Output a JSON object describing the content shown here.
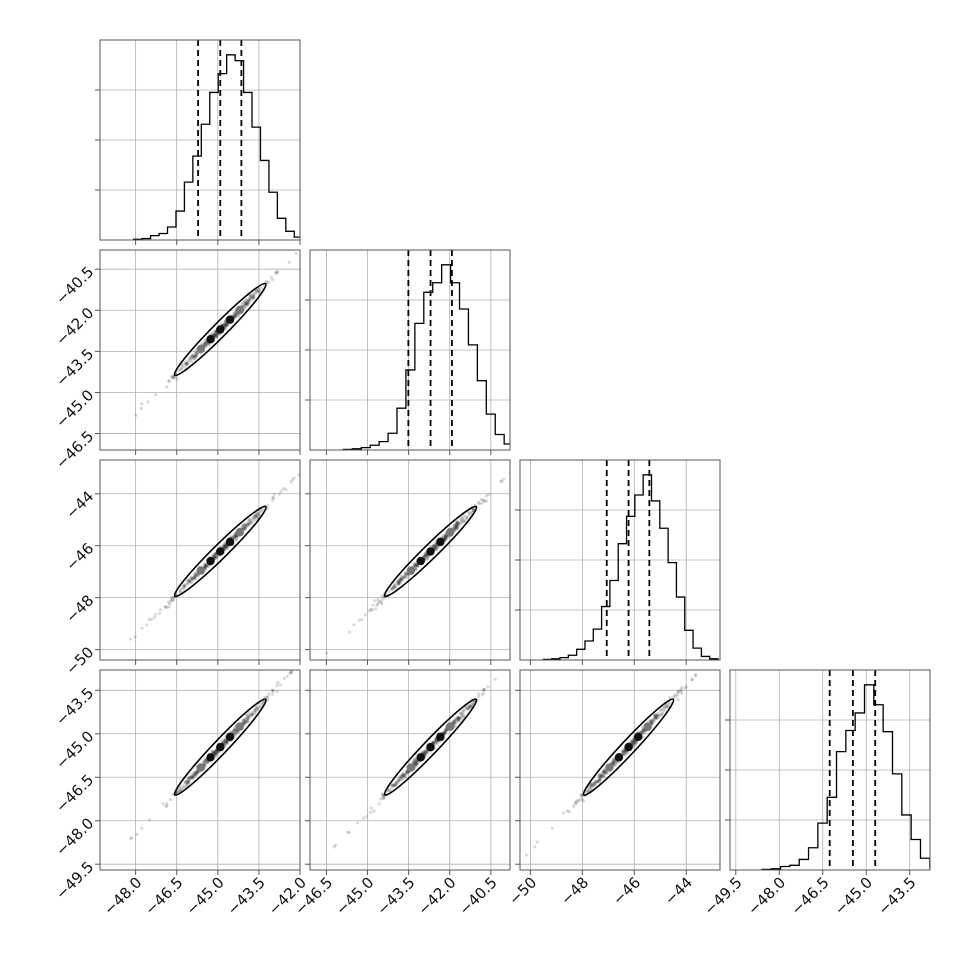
{
  "chart_data": {
    "type": "corner",
    "n_params": 4,
    "colors": {
      "hist_line": "#000000",
      "quantile_line": "#000000",
      "grid": "#b0b0b0",
      "frame": "#555555",
      "points": "#333333",
      "contour": "#000000"
    },
    "grid": true,
    "params": [
      {
        "range": [
          -49.3,
          -42.0
        ],
        "ticks": [
          -48.0,
          -46.5,
          -45.0,
          -43.5,
          -42.0
        ],
        "tick_labels": [
          "−48.0",
          "−46.5",
          "−45.0",
          "−43.5",
          "−42.0"
        ],
        "quantiles": [
          -45.72,
          -44.91,
          -44.14
        ]
      },
      {
        "range": [
          -47.1,
          -39.8
        ],
        "ticks": [
          -46.5,
          -45.0,
          -43.5,
          -42.0,
          -40.5
        ],
        "tick_labels": [
          "−46.5",
          "−45.0",
          "−43.5",
          "−42.0",
          "−40.5"
        ],
        "quantiles": [
          -43.51,
          -42.7,
          -41.92
        ]
      },
      {
        "range": [
          -50.4,
          -42.7
        ],
        "ticks": [
          -50,
          -48,
          -46,
          -44
        ],
        "tick_labels": [
          "−50",
          "−48",
          "−46",
          "−44"
        ],
        "quantiles": [
          -47.06,
          -46.22,
          -45.42
        ]
      },
      {
        "range": [
          -49.7,
          -42.8
        ],
        "ticks": [
          -49.5,
          -48.0,
          -46.5,
          -45.0,
          -43.5
        ],
        "tick_labels": [
          "−49.5",
          "−48.0",
          "−46.5",
          "−45.0",
          "−43.5"
        ],
        "quantiles": [
          -46.26,
          -45.46,
          -44.69
        ]
      }
    ],
    "histograms": [
      {
        "counts": [
          0.5,
          1,
          3,
          4.5,
          9,
          20,
          40,
          58,
          80,
          102,
          115,
          128,
          124,
          102,
          78,
          55,
          33,
          15,
          6,
          2,
          0.8
        ]
      },
      {
        "counts": [
          0.5,
          1,
          2,
          4,
          7,
          14,
          35,
          67,
          106,
          132,
          140,
          155,
          140,
          118,
          88,
          58,
          30,
          13,
          5,
          1.5
        ]
      },
      {
        "counts": [
          0.5,
          1,
          2,
          4,
          9,
          16,
          26,
          45,
          67,
          98,
          121,
          139,
          156,
          134,
          111,
          82,
          53,
          25,
          10,
          3,
          1
        ]
      },
      {
        "counts": [
          0.5,
          1,
          3,
          4,
          9,
          19,
          40,
          62,
          101,
          119,
          134,
          158,
          141,
          118,
          82,
          47,
          26,
          10,
          2,
          1
        ]
      }
    ]
  }
}
